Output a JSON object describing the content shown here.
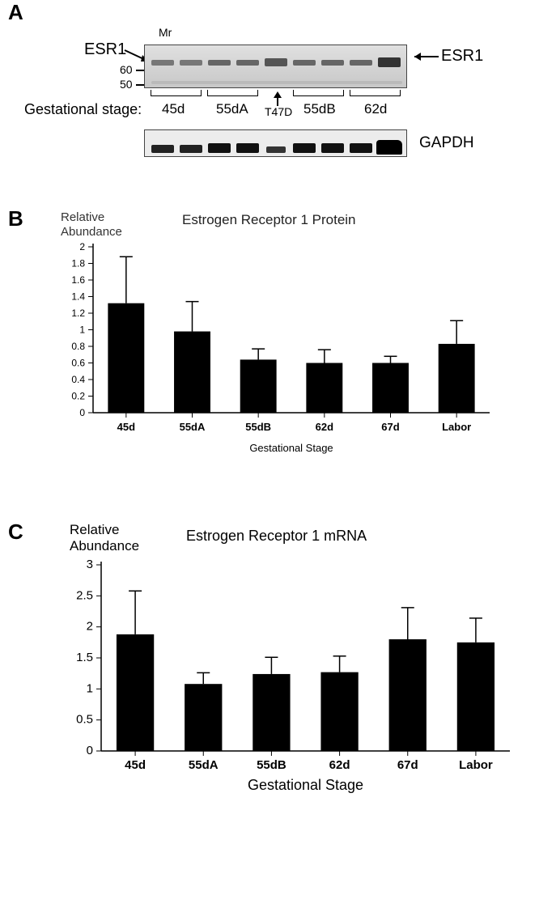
{
  "panelA": {
    "label": "A",
    "mr_label": "Mr",
    "esr1_left": "ESR1",
    "esr1_right": "ESR1",
    "gapdh_label": "GAPDH",
    "mw_labels": [
      "60",
      "50"
    ],
    "gestational_label": "Gestational stage:",
    "lane_groups": [
      "45d",
      "55dA",
      "T47D",
      "55dB",
      "62d"
    ]
  },
  "panelB": {
    "label": "B",
    "y_label": "Relative\nAbundance",
    "title": "Estrogen Receptor 1 Protein",
    "x_label": "Gestational Stage",
    "type": "bar",
    "ylim": [
      0,
      2
    ],
    "ytick_step": 0.2,
    "categories": [
      "45d",
      "55dA",
      "55dB",
      "62d",
      "67d",
      "Labor"
    ],
    "values": [
      1.32,
      0.98,
      0.64,
      0.6,
      0.6,
      0.83
    ],
    "errors": [
      0.56,
      0.36,
      0.13,
      0.16,
      0.08,
      0.28
    ],
    "bar_color": "#000000",
    "background_color": "#ffffff",
    "axis_color": "#000000",
    "bar_width": 0.55,
    "label_fontsize": 13,
    "axis_fontsize": 13,
    "title_fontsize": 16
  },
  "panelC": {
    "label": "C",
    "y_label": "Relative\nAbundance",
    "title": "Estrogen Receptor 1 mRNA",
    "x_label": "Gestational Stage",
    "type": "bar",
    "ylim": [
      0,
      3
    ],
    "ytick_step": 0.5,
    "categories": [
      "45d",
      "55dA",
      "55dB",
      "62d",
      "67d",
      "Labor"
    ],
    "values": [
      1.88,
      1.08,
      1.24,
      1.27,
      1.8,
      1.75
    ],
    "errors": [
      0.7,
      0.18,
      0.27,
      0.26,
      0.51,
      0.39
    ],
    "bar_color": "#000000",
    "background_color": "#ffffff",
    "axis_color": "#000000",
    "bar_width": 0.55,
    "label_fontsize": 14,
    "axis_fontsize": 14,
    "title_fontsize": 17
  }
}
